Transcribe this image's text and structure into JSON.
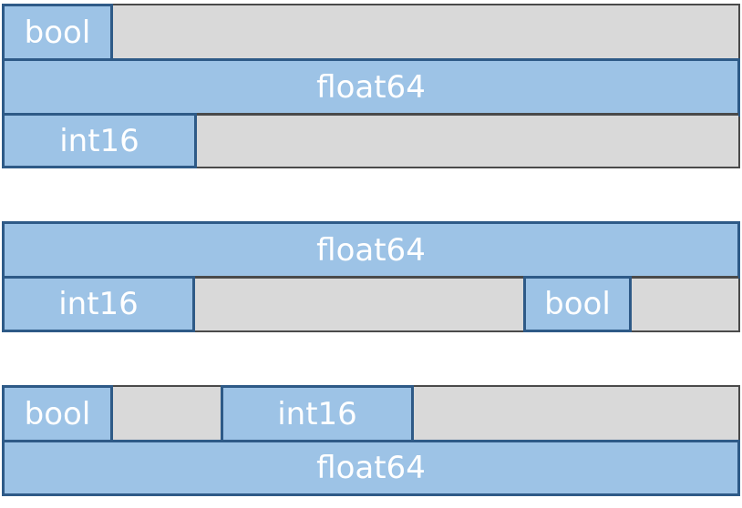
{
  "layouts": [
    {
      "rows": [
        {
          "cells": [
            {
              "kind": "field",
              "label": "bool"
            },
            {
              "kind": "padding"
            }
          ]
        },
        {
          "cells": [
            {
              "kind": "field",
              "label": "float64"
            }
          ]
        },
        {
          "cells": [
            {
              "kind": "field",
              "label": "int16"
            },
            {
              "kind": "padding"
            }
          ]
        }
      ]
    },
    {
      "rows": [
        {
          "cells": [
            {
              "kind": "field",
              "label": "float64"
            }
          ]
        },
        {
          "cells": [
            {
              "kind": "field",
              "label": "int16"
            },
            {
              "kind": "padding"
            },
            {
              "kind": "field",
              "label": "bool"
            },
            {
              "kind": "padding"
            }
          ]
        }
      ]
    },
    {
      "rows": [
        {
          "cells": [
            {
              "kind": "field",
              "label": "bool"
            },
            {
              "kind": "padding"
            },
            {
              "kind": "field",
              "label": "int16"
            },
            {
              "kind": "padding"
            }
          ]
        },
        {
          "cells": [
            {
              "kind": "field",
              "label": "float64"
            }
          ]
        }
      ]
    }
  ],
  "colors": {
    "field_fill": "#9dc3e6",
    "field_border": "#2e5a87",
    "padding_fill": "#d9d9d9",
    "outline": "#4a4a4a",
    "label_text": "#ffffff"
  }
}
